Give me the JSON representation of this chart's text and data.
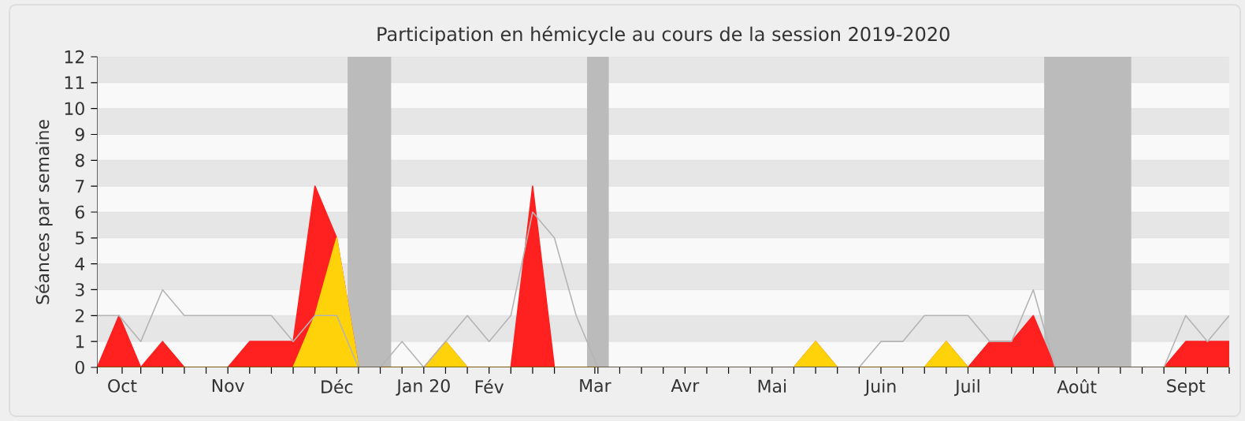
{
  "chart_data": {
    "type": "area",
    "title": "Participation en hémicycle au cours de la session 2019-2020",
    "ylabel": "Séances par semaine",
    "x": [
      "2019-09-23",
      "2019-09-30",
      "2019-10-07",
      "2019-10-14",
      "2019-10-21",
      "2019-10-28",
      "2019-11-04",
      "2019-11-11",
      "2019-11-18",
      "2019-11-25",
      "2019-12-02",
      "2019-12-09",
      "2019-12-16",
      "2019-12-23",
      "2019-12-30",
      "2020-01-06",
      "2020-01-13",
      "2020-01-20",
      "2020-01-27",
      "2020-02-03",
      "2020-02-10",
      "2020-02-17",
      "2020-02-24",
      "2020-03-02",
      "2020-03-09",
      "2020-03-16",
      "2020-03-23",
      "2020-03-30",
      "2020-04-06",
      "2020-04-13",
      "2020-04-20",
      "2020-04-27",
      "2020-05-04",
      "2020-05-11",
      "2020-05-18",
      "2020-05-25",
      "2020-06-01",
      "2020-06-08",
      "2020-06-15",
      "2020-06-22",
      "2020-06-29",
      "2020-07-06",
      "2020-07-13",
      "2020-07-20",
      "2020-07-27",
      "2020-08-03",
      "2020-08-10",
      "2020-08-17",
      "2020-08-24",
      "2020-08-31",
      "2020-09-07",
      "2020-09-14",
      "2020-09-21"
    ],
    "series": [
      {
        "type": "line",
        "color": "#b4b4b4",
        "values": [
          2,
          2,
          1,
          3,
          2,
          2,
          2,
          2,
          2,
          1,
          2,
          2,
          0,
          0,
          1,
          0,
          1,
          2,
          1,
          2,
          6,
          5,
          2,
          0,
          0,
          0,
          0,
          0,
          0,
          0,
          0,
          0,
          0,
          0,
          0,
          0,
          1,
          1,
          2,
          2,
          2,
          1,
          1,
          3,
          0,
          0,
          0,
          0,
          0,
          0,
          2,
          1,
          2
        ]
      },
      {
        "color": "#ff2020",
        "values": [
          0,
          2,
          0,
          1,
          0,
          0,
          0,
          1,
          1,
          1,
          7,
          5,
          0,
          0,
          0,
          0,
          1,
          0,
          0,
          0,
          7,
          0,
          0,
          0,
          0,
          0,
          0,
          0,
          0,
          0,
          0,
          0,
          0,
          1,
          0,
          0,
          0,
          0,
          0,
          1,
          0,
          1,
          1,
          2,
          0,
          0,
          0,
          0,
          0,
          0,
          1,
          1,
          1
        ]
      },
      {
        "color": "#ffd20a",
        "values": [
          0,
          0,
          0,
          0,
          0,
          0,
          0,
          0,
          0,
          0,
          2,
          5,
          0,
          0,
          0,
          0,
          1,
          0,
          0,
          0,
          0,
          0,
          0,
          0,
          0,
          0,
          0,
          0,
          0,
          0,
          0,
          0,
          0,
          1,
          0,
          0,
          0,
          0,
          0,
          1,
          0,
          0,
          0,
          0,
          0,
          0,
          0,
          0,
          0,
          0,
          0,
          0,
          0
        ]
      }
    ],
    "xlim": [
      "2019-09-23",
      "2020-09-21"
    ],
    "xticks": [
      {
        "value": "2019-09-23",
        "label": null
      },
      {
        "value": "2019-10-01",
        "label": "Oct"
      },
      {
        "value": "2019-10-07",
        "label": null
      },
      {
        "value": "2019-10-14",
        "label": null
      },
      {
        "value": "2019-10-21",
        "label": null
      },
      {
        "value": "2019-10-28",
        "label": null
      },
      {
        "value": "2019-11-04",
        "label": "Nov"
      },
      {
        "value": "2019-11-11",
        "label": null
      },
      {
        "value": "2019-11-18",
        "label": null
      },
      {
        "value": "2019-11-25",
        "label": null
      },
      {
        "value": "2019-12-02",
        "label": null
      },
      {
        "value": "2019-12-09",
        "label": "Déc"
      },
      {
        "value": "2019-12-16",
        "label": null
      },
      {
        "value": "2019-12-23",
        "label": null
      },
      {
        "value": "2019-12-30",
        "label": null
      },
      {
        "value": "2020-01-06",
        "label": "Jan 20"
      },
      {
        "value": "2020-01-13",
        "label": null
      },
      {
        "value": "2020-01-20",
        "label": null
      },
      {
        "value": "2020-01-27",
        "label": "Fév"
      },
      {
        "value": "2020-02-03",
        "label": null
      },
      {
        "value": "2020-02-10",
        "label": null
      },
      {
        "value": "2020-02-17",
        "label": null
      },
      {
        "value": "2020-03-01",
        "label": "Mar"
      },
      {
        "value": "2020-03-02",
        "label": null
      },
      {
        "value": "2020-03-09",
        "label": null
      },
      {
        "value": "2020-03-16",
        "label": null
      },
      {
        "value": "2020-03-23",
        "label": null
      },
      {
        "value": "2020-03-30",
        "label": "Avr"
      },
      {
        "value": "2020-04-06",
        "label": null
      },
      {
        "value": "2020-04-13",
        "label": null
      },
      {
        "value": "2020-04-20",
        "label": null
      },
      {
        "value": "2020-04-27",
        "label": "Mai"
      },
      {
        "value": "2020-05-04",
        "label": null
      },
      {
        "value": "2020-05-11",
        "label": null
      },
      {
        "value": "2020-05-18",
        "label": null
      },
      {
        "value": "2020-05-25",
        "label": null
      },
      {
        "value": "2020-06-01",
        "label": "Juin"
      },
      {
        "value": "2020-06-08",
        "label": null
      },
      {
        "value": "2020-06-15",
        "label": null
      },
      {
        "value": "2020-06-22",
        "label": null
      },
      {
        "value": "2020-06-29",
        "label": "Juil"
      },
      {
        "value": "2020-07-06",
        "label": null
      },
      {
        "value": "2020-07-13",
        "label": null
      },
      {
        "value": "2020-07-20",
        "label": null
      },
      {
        "value": "2020-07-27",
        "label": null
      },
      {
        "value": "2020-08-03",
        "label": "Août"
      },
      {
        "value": "2020-08-10",
        "label": null
      },
      {
        "value": "2020-08-17",
        "label": null
      },
      {
        "value": "2020-08-24",
        "label": null
      },
      {
        "value": "2020-08-31",
        "label": null
      },
      {
        "value": "2020-09-07",
        "label": "Sept"
      },
      {
        "value": "2020-09-14",
        "label": null
      },
      {
        "value": "2020-09-21",
        "label": null
      }
    ],
    "ylim": [
      0,
      12
    ],
    "yticks": [
      0,
      1,
      2,
      3,
      4,
      5,
      6,
      7,
      8,
      9,
      10,
      11,
      12
    ],
    "grid": "y",
    "bands": [
      {
        "axis": "x",
        "from": "2019-12-12T12:00",
        "to": "2019-12-26T12:00",
        "color": "#bbbbbb"
      },
      {
        "axis": "x",
        "from": "2020-02-27T12:00",
        "to": "2020-03-05T12:00",
        "color": "#bbbbbb"
      },
      {
        "axis": "x",
        "from": "2020-07-23T12:00",
        "to": "2020-08-20T12:00",
        "color": "#bbbbbb"
      }
    ]
  }
}
